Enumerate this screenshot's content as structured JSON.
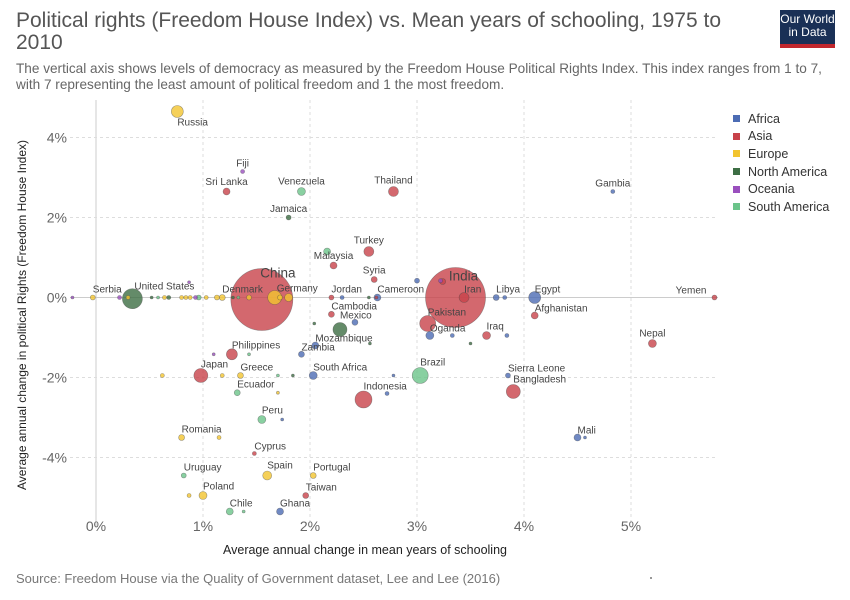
{
  "header": {
    "title": "Political rights (Freedom House Index) vs. Mean years of schooling, 1975 to 2010",
    "subtitle": "The vertical axis shows levels of democracy as measured by the Freedom House Political Rights Index. This index ranges from 1 to 7, with 7 representing the least amount of political freedom and 1 the most freedom.",
    "logo_line1": "Our World",
    "logo_line2": "in Data"
  },
  "footer": {
    "source": "Source: Freedom House via the Quality of Government dataset, Lee and Lee (2016)"
  },
  "colors": {
    "Africa": "#4c6cb4",
    "Asia": "#c8424a",
    "Europe": "#f2c42f",
    "North America": "#3d6e44",
    "Oceania": "#9a4fbe",
    "South America": "#6bc48a"
  },
  "chart_data": {
    "type": "scatter",
    "title": "Political rights (Freedom House Index) vs. Mean years of schooling, 1975 to 2010",
    "xlabel": "Average annual change in mean years of schooling",
    "ylabel": "Average annual change in political Rights (Freedom House Index)",
    "xlim": [
      -0.25,
      5.8
    ],
    "ylim": [
      -5.4,
      4.8
    ],
    "x_ticks": [
      0,
      1,
      2,
      3,
      4,
      5
    ],
    "x_tick_labels": [
      "0%",
      "1%",
      "2%",
      "3%",
      "4%",
      "5%"
    ],
    "y_ticks": [
      4,
      2,
      0,
      -2,
      -4
    ],
    "y_tick_labels": [
      "4%",
      "2%",
      "0%",
      "-2%",
      "-4%"
    ],
    "grid": true,
    "legend_position": "right",
    "legend": [
      "Africa",
      "Asia",
      "Europe",
      "North America",
      "Oceania",
      "South America"
    ],
    "points": [
      {
        "label": "Russia",
        "region": "Europe",
        "x": 0.76,
        "y": 4.65,
        "size": 6
      },
      {
        "label": "Fiji",
        "region": "Oceania",
        "x": 1.37,
        "y": 3.15,
        "size": 2
      },
      {
        "label": "Sri Lanka",
        "region": "Asia",
        "x": 1.22,
        "y": 2.65,
        "size": 3.5
      },
      {
        "label": "Venezuela",
        "region": "South America",
        "x": 1.92,
        "y": 2.65,
        "size": 4
      },
      {
        "label": "Thailand",
        "region": "Asia",
        "x": 2.78,
        "y": 2.65,
        "size": 5
      },
      {
        "label": "Gambia",
        "region": "Africa",
        "x": 4.83,
        "y": 2.65,
        "size": 2
      },
      {
        "label": "Jamaica",
        "region": "North America",
        "x": 1.8,
        "y": 2.0,
        "size": 2.5
      },
      {
        "label": "Turkey",
        "region": "Asia",
        "x": 2.55,
        "y": 1.15,
        "size": 5
      },
      {
        "label": "Malaysia",
        "region": "Asia",
        "x": 2.22,
        "y": 0.8,
        "size": 3.5
      },
      {
        "label": "Syria",
        "region": "Asia",
        "x": 2.6,
        "y": 0.45,
        "size": 3
      },
      {
        "label": "India",
        "region": "Asia",
        "x": 3.36,
        "y": 0.0,
        "size": 30
      },
      {
        "label": "China",
        "region": "Asia",
        "x": 1.55,
        "y": -0.05,
        "size": 31
      },
      {
        "label": "Serbia",
        "region": "Europe",
        "x": -0.03,
        "y": 0.0,
        "size": 2.5
      },
      {
        "label": "United States",
        "region": "North America",
        "x": 0.34,
        "y": -0.03,
        "size": 10
      },
      {
        "label": "Denmark",
        "region": "Europe",
        "x": 1.18,
        "y": 0.0,
        "size": 3
      },
      {
        "label": "Germany",
        "region": "Europe",
        "x": 1.67,
        "y": 0.0,
        "size": 7
      },
      {
        "label": "Jordan",
        "region": "Asia",
        "x": 2.2,
        "y": 0.0,
        "size": 2.5
      },
      {
        "label": "Cameroon",
        "region": "Africa",
        "x": 2.63,
        "y": 0.0,
        "size": 3.5
      },
      {
        "label": "Iran",
        "region": "Asia",
        "x": 3.44,
        "y": 0.0,
        "size": 5
      },
      {
        "label": "Libya",
        "region": "Africa",
        "x": 3.74,
        "y": 0.0,
        "size": 3
      },
      {
        "label": "Egypt",
        "region": "Africa",
        "x": 4.1,
        "y": 0.0,
        "size": 6
      },
      {
        "label": "Yemen",
        "region": "Asia",
        "x": 5.78,
        "y": 0.0,
        "size": 2.5
      },
      {
        "label": "Afghanistan",
        "region": "Asia",
        "x": 4.1,
        "y": -0.45,
        "size": 3.5
      },
      {
        "label": "Cambodia",
        "region": "Asia",
        "x": 2.2,
        "y": -0.42,
        "size": 3
      },
      {
        "label": "Mexico",
        "region": "North America",
        "x": 2.28,
        "y": -0.8,
        "size": 7
      },
      {
        "label": "Pakistan",
        "region": "Asia",
        "x": 3.1,
        "y": -0.65,
        "size": 8
      },
      {
        "label": "Oganda",
        "region": "Africa",
        "x": 3.12,
        "y": -0.95,
        "size": 4
      },
      {
        "label": "Iraq",
        "region": "Asia",
        "x": 3.65,
        "y": -0.95,
        "size": 4
      },
      {
        "label": "Mozambique",
        "region": "Africa",
        "x": 2.05,
        "y": -1.2,
        "size": 3.5
      },
      {
        "label": "Zambia",
        "region": "Africa",
        "x": 1.92,
        "y": -1.42,
        "size": 3
      },
      {
        "label": "Nepal",
        "region": "Asia",
        "x": 5.2,
        "y": -1.15,
        "size": 4
      },
      {
        "label": "Philippines",
        "region": "Asia",
        "x": 1.27,
        "y": -1.42,
        "size": 5.5
      },
      {
        "label": "Japan",
        "region": "Asia",
        "x": 0.98,
        "y": -1.95,
        "size": 7
      },
      {
        "label": "Greece",
        "region": "Europe",
        "x": 1.35,
        "y": -1.95,
        "size": 3
      },
      {
        "label": "South Africa",
        "region": "Africa",
        "x": 2.03,
        "y": -1.95,
        "size": 4
      },
      {
        "label": "Brazil",
        "region": "South America",
        "x": 3.03,
        "y": -1.95,
        "size": 8
      },
      {
        "label": "Sierra Leone",
        "region": "Africa",
        "x": 3.85,
        "y": -1.95,
        "size": 2.5
      },
      {
        "label": "Bangladesh",
        "region": "Asia",
        "x": 3.9,
        "y": -2.35,
        "size": 7
      },
      {
        "label": "Ecuador",
        "region": "South America",
        "x": 1.32,
        "y": -2.38,
        "size": 3
      },
      {
        "label": "Indonesia",
        "region": "Asia",
        "x": 2.5,
        "y": -2.55,
        "size": 8.5
      },
      {
        "label": "Peru",
        "region": "South America",
        "x": 1.55,
        "y": -3.05,
        "size": 4
      },
      {
        "label": "Romania",
        "region": "Europe",
        "x": 0.8,
        "y": -3.5,
        "size": 3
      },
      {
        "label": "Mali",
        "region": "Africa",
        "x": 4.5,
        "y": -3.5,
        "size": 3.5
      },
      {
        "label": "Cyprus",
        "region": "Asia",
        "x": 1.48,
        "y": -3.9,
        "size": 2
      },
      {
        "label": "Uruguay",
        "region": "South America",
        "x": 0.82,
        "y": -4.45,
        "size": 2.5
      },
      {
        "label": "Spain",
        "region": "Europe",
        "x": 1.6,
        "y": -4.45,
        "size": 4.5
      },
      {
        "label": "Portugal",
        "region": "Europe",
        "x": 2.03,
        "y": -4.45,
        "size": 3
      },
      {
        "label": "Poland",
        "region": "Europe",
        "x": 1.0,
        "y": -4.95,
        "size": 4
      },
      {
        "label": "Taiwan",
        "region": "Asia",
        "x": 1.96,
        "y": -4.95,
        "size": 3
      },
      {
        "label": "Chile",
        "region": "South America",
        "x": 1.25,
        "y": -5.35,
        "size": 3.5
      },
      {
        "label": "Ghana",
        "region": "Africa",
        "x": 1.72,
        "y": -5.35,
        "size": 3.5
      }
    ],
    "unlabeled_points": [
      {
        "region": "Oceania",
        "x": -0.22,
        "y": 0.0,
        "size": 1.5
      },
      {
        "region": "Oceania",
        "x": 0.22,
        "y": 0.0,
        "size": 2
      },
      {
        "region": "Europe",
        "x": 0.3,
        "y": 0.0,
        "size": 2
      },
      {
        "region": "North America",
        "x": 0.52,
        "y": 0.0,
        "size": 1.5
      },
      {
        "region": "South America",
        "x": 0.58,
        "y": 0.0,
        "size": 1.5
      },
      {
        "region": "Europe",
        "x": 0.64,
        "y": 0.0,
        "size": 2
      },
      {
        "region": "North America",
        "x": 0.68,
        "y": 0.0,
        "size": 2
      },
      {
        "region": "Europe",
        "x": 0.8,
        "y": 0.0,
        "size": 2
      },
      {
        "region": "Europe",
        "x": 0.84,
        "y": 0.0,
        "size": 2
      },
      {
        "region": "Europe",
        "x": 0.88,
        "y": 0.0,
        "size": 2
      },
      {
        "region": "Oceania",
        "x": 0.93,
        "y": 0.0,
        "size": 2
      },
      {
        "region": "South America",
        "x": 0.96,
        "y": 0.0,
        "size": 2.5
      },
      {
        "region": "Europe",
        "x": 1.03,
        "y": 0.0,
        "size": 2
      },
      {
        "region": "Europe",
        "x": 1.13,
        "y": 0.0,
        "size": 2.5
      },
      {
        "region": "North America",
        "x": 1.28,
        "y": 0.0,
        "size": 1.5
      },
      {
        "region": "South America",
        "x": 1.33,
        "y": 0.0,
        "size": 1.5
      },
      {
        "region": "Europe",
        "x": 1.43,
        "y": 0.0,
        "size": 2.5
      },
      {
        "region": "Europe",
        "x": 1.72,
        "y": 0.0,
        "size": 2.5
      },
      {
        "region": "Europe",
        "x": 1.8,
        "y": 0.0,
        "size": 4
      },
      {
        "region": "Africa",
        "x": 2.3,
        "y": 0.0,
        "size": 2
      },
      {
        "region": "North America",
        "x": 2.55,
        "y": 0.0,
        "size": 1.5
      },
      {
        "region": "Asia",
        "x": 2.62,
        "y": 0.0,
        "size": 1.5
      },
      {
        "region": "Africa",
        "x": 3.82,
        "y": 0.0,
        "size": 2
      },
      {
        "region": "Oceania",
        "x": 0.87,
        "y": 0.38,
        "size": 1.5
      },
      {
        "region": "Africa",
        "x": 3.0,
        "y": 0.42,
        "size": 2.5
      },
      {
        "region": "Oceania",
        "x": 3.22,
        "y": 0.42,
        "size": 2
      },
      {
        "region": "Asia",
        "x": 3.24,
        "y": 0.4,
        "size": 3
      },
      {
        "region": "South America",
        "x": 2.16,
        "y": 1.15,
        "size": 3.5
      },
      {
        "region": "North America",
        "x": 2.04,
        "y": -0.65,
        "size": 1.5
      },
      {
        "region": "Africa",
        "x": 2.42,
        "y": -0.62,
        "size": 3
      },
      {
        "region": "North America",
        "x": 2.56,
        "y": -1.15,
        "size": 1.5
      },
      {
        "region": "Africa",
        "x": 3.33,
        "y": -0.95,
        "size": 2
      },
      {
        "region": "North America",
        "x": 3.5,
        "y": -1.15,
        "size": 1.5
      },
      {
        "region": "Africa",
        "x": 3.84,
        "y": -0.95,
        "size": 2
      },
      {
        "region": "South America",
        "x": 1.43,
        "y": -1.42,
        "size": 1.5
      },
      {
        "region": "Oceania",
        "x": 1.1,
        "y": -1.42,
        "size": 1.5
      },
      {
        "region": "Europe",
        "x": 0.62,
        "y": -1.95,
        "size": 2
      },
      {
        "region": "Europe",
        "x": 1.18,
        "y": -1.95,
        "size": 2
      },
      {
        "region": "South America",
        "x": 1.7,
        "y": -1.95,
        "size": 1.5
      },
      {
        "region": "North America",
        "x": 1.84,
        "y": -1.95,
        "size": 1.5
      },
      {
        "region": "Africa",
        "x": 2.72,
        "y": -2.4,
        "size": 2
      },
      {
        "region": "Africa",
        "x": 2.78,
        "y": -1.95,
        "size": 1.5
      },
      {
        "region": "Europe",
        "x": 1.7,
        "y": -2.38,
        "size": 1.5
      },
      {
        "region": "Africa",
        "x": 1.74,
        "y": -3.05,
        "size": 1.5
      },
      {
        "region": "Europe",
        "x": 1.15,
        "y": -3.5,
        "size": 2
      },
      {
        "region": "Africa",
        "x": 4.57,
        "y": -3.5,
        "size": 1.5
      },
      {
        "region": "Europe",
        "x": 0.87,
        "y": -4.95,
        "size": 2
      },
      {
        "region": "South America",
        "x": 1.38,
        "y": -5.35,
        "size": 1.5
      }
    ],
    "label_overrides": {
      "Russia": [
        0,
        14,
        "start"
      ],
      "India": [
        8,
        -17,
        "middle"
      ],
      "China": [
        16,
        -22,
        "middle"
      ],
      "Serbia": [
        0,
        -5,
        "start"
      ],
      "United States": [
        2,
        -9,
        "start"
      ],
      "Denmark": [
        0,
        -5,
        "start"
      ],
      "Germany": [
        2,
        -6,
        "start"
      ],
      "Jordan": [
        0,
        -5,
        "start"
      ],
      "Cameroon": [
        0,
        -5,
        "start"
      ],
      "Iran": [
        0,
        -5,
        "start"
      ],
      "Libya": [
        0,
        -5,
        "start"
      ],
      "Egypt": [
        0,
        -5,
        "start"
      ],
      "Yemen": [
        -8,
        -4,
        "end"
      ],
      "Afghanistan": [
        0,
        -4,
        "start"
      ],
      "Cambodia": [
        0,
        -5,
        "start"
      ],
      "Mexico": [
        0,
        -11,
        "start"
      ],
      "Pakistan": [
        0,
        -8,
        "start"
      ],
      "Oganda": [
        0,
        -4,
        "start"
      ],
      "Iraq": [
        0,
        -6,
        "start"
      ],
      "Mozambique": [
        0,
        -4,
        "start"
      ],
      "Zambia": [
        0,
        -4,
        "start"
      ],
      "Philippines": [
        0,
        -6,
        "start"
      ],
      "Japan": [
        0,
        -8,
        "start"
      ],
      "Greece": [
        0,
        -5,
        "start"
      ],
      "South Africa": [
        0,
        -5,
        "start"
      ],
      "Brazil": [
        0,
        -10,
        "start"
      ],
      "Sierra Leone": [
        0,
        -4,
        "start"
      ],
      "Bangladesh": [
        0,
        -9,
        "start"
      ],
      "Ecuador": [
        0,
        -5,
        "start"
      ],
      "Indonesia": [
        0,
        -10,
        "start"
      ],
      "Peru": [
        0,
        -6,
        "start"
      ],
      "Romania": [
        0,
        -5,
        "start"
      ],
      "Mali": [
        0,
        -4,
        "start"
      ],
      "Cyprus": [
        0,
        -4,
        "start"
      ],
      "Uruguay": [
        0,
        -5,
        "start"
      ],
      "Spain": [
        0,
        -7,
        "start"
      ],
      "Portugal": [
        0,
        -5,
        "start"
      ],
      "Poland": [
        0,
        -6,
        "start"
      ],
      "Taiwan": [
        0,
        -5,
        "start"
      ],
      "Chile": [
        0,
        -5,
        "start"
      ],
      "Ghana": [
        0,
        -5,
        "start"
      ]
    }
  }
}
